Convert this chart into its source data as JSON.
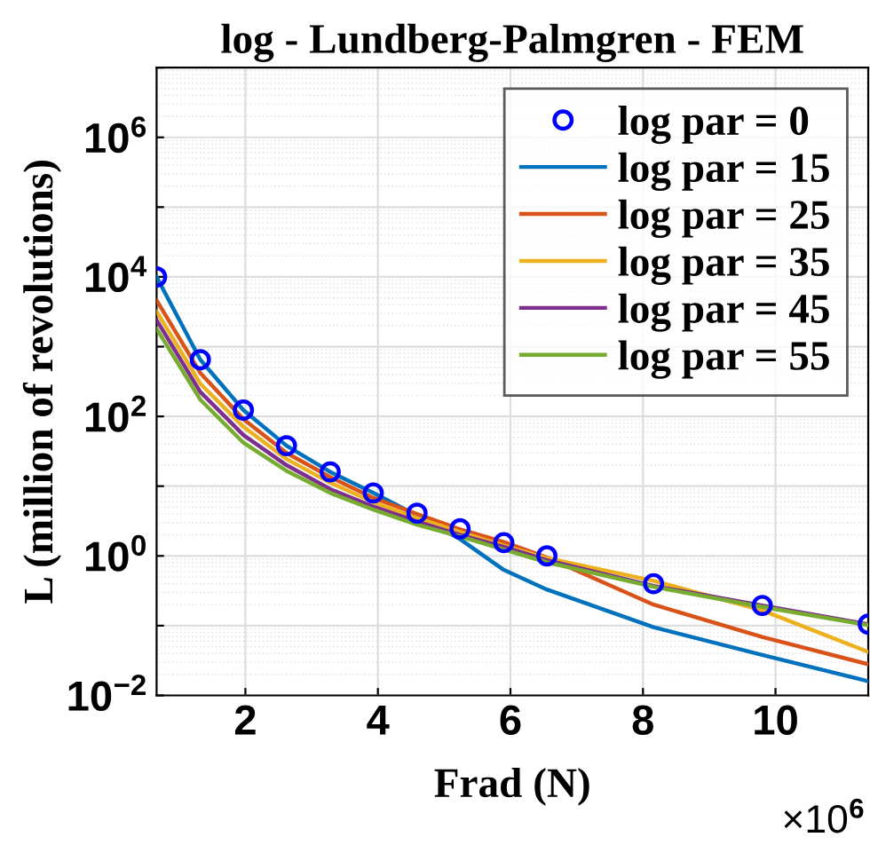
{
  "chart_data": {
    "type": "line",
    "title": "log - Lundberg-Palmgren - FEM",
    "xlabel": "Frad (N)",
    "ylabel": "L (million of revolutions)",
    "annotations": [
      "×10$^{6}$"
    ],
    "x": [
      0.66,
      1.32,
      1.97,
      2.62,
      3.28,
      3.93,
      4.59,
      5.24,
      5.9,
      6.55,
      8.16,
      9.8,
      11.4
    ],
    "series": [
      {
        "name": "log par = 0",
        "type": "scatter",
        "marker": "circle",
        "color": "#0000ff",
        "values": [
          10000,
          650,
          123,
          38,
          16,
          8,
          4.1,
          2.45,
          1.55,
          1.0,
          0.4,
          0.195,
          0.105
        ]
      },
      {
        "name": "log par = 15",
        "color": "#0072bd",
        "values": [
          10000,
          650,
          123,
          38,
          16,
          8,
          3.8,
          1.74,
          0.63,
          0.33,
          0.095,
          0.038,
          0.016
        ]
      },
      {
        "name": "log par = 25",
        "color": "#d95319",
        "values": [
          4600,
          420,
          91,
          30,
          13.5,
          6.8,
          4.0,
          2.4,
          1.58,
          0.95,
          0.2,
          0.069,
          0.028
        ]
      },
      {
        "name": "log par = 35",
        "color": "#edb120",
        "values": [
          3200,
          295,
          71,
          24.5,
          11.2,
          5.9,
          3.5,
          2.2,
          1.41,
          0.93,
          0.44,
          0.166,
          0.042
        ]
      },
      {
        "name": "log par = 45",
        "color": "#7e2f8e",
        "values": [
          2400,
          224,
          54,
          20,
          9.1,
          5.1,
          3.1,
          2.0,
          1.35,
          0.87,
          0.37,
          0.195,
          0.105
        ]
      },
      {
        "name": "log par = 55",
        "color": "#77ac30",
        "values": [
          1800,
          174,
          42,
          16.6,
          8,
          4.6,
          2.8,
          1.9,
          1.23,
          0.81,
          0.36,
          0.186,
          0.102
        ]
      }
    ],
    "log": "y",
    "xlim": [
      0.66,
      11.4
    ],
    "xticks": [
      2,
      4,
      6,
      8,
      10
    ],
    "ylim": [
      0.01,
      10000000
    ],
    "yticks": [
      {
        "value": 0.01,
        "label": "10$^{−2}$"
      },
      {
        "value": 0.1,
        "label": null
      },
      {
        "value": 1,
        "label": "10$^{0}$"
      },
      {
        "value": 10,
        "label": null
      },
      {
        "value": 100,
        "label": "10$^{2}$"
      },
      {
        "value": 1000,
        "label": null
      },
      {
        "value": 10000,
        "label": "10$^{4}$"
      },
      {
        "value": 100000,
        "label": null
      },
      {
        "value": 1000000,
        "label": "10$^{6}$"
      },
      {
        "value": 10000000,
        "label": null
      }
    ],
    "grid": true,
    "legend": "top right"
  }
}
